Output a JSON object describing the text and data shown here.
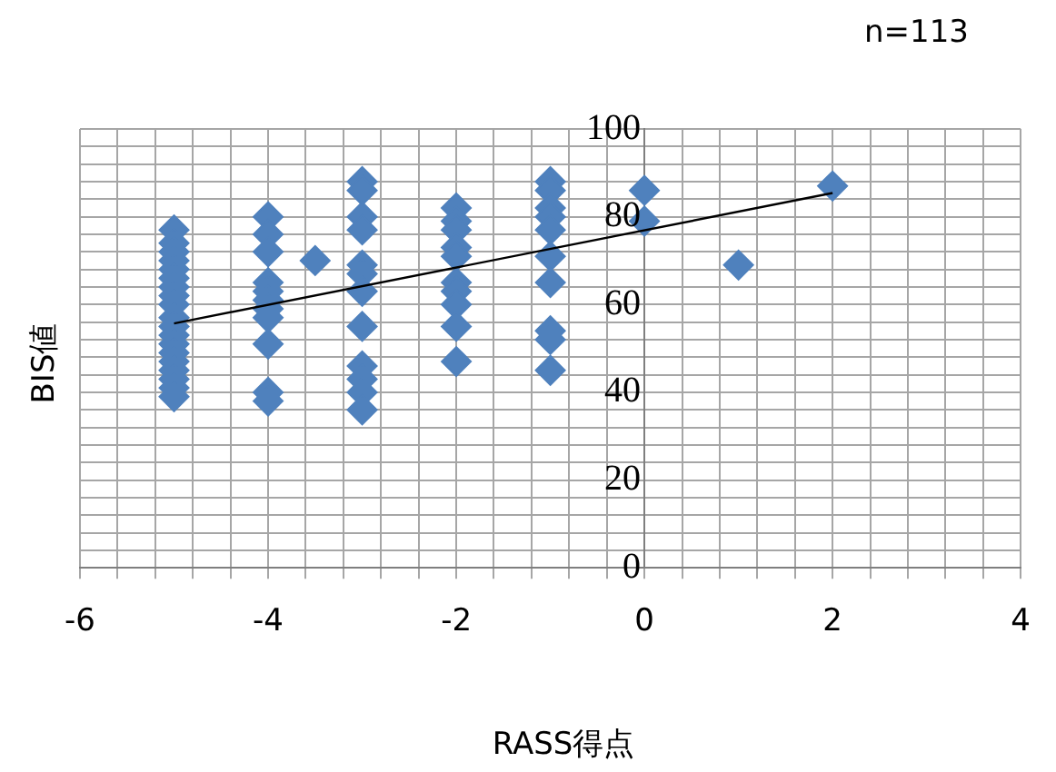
{
  "chart_data": {
    "type": "scatter",
    "xlabel": "RASS得点",
    "ylabel": "BIS値",
    "annotations": [
      "n=113"
    ],
    "xlim": [
      -6,
      4
    ],
    "ylim": [
      0,
      100
    ],
    "xticks": [
      -6,
      {
        "value": -5.6,
        "label": null
      },
      {
        "value": -5.2,
        "label": null
      },
      {
        "value": -4.8,
        "label": null
      },
      {
        "value": -4.4,
        "label": null
      },
      -4,
      {
        "value": -3.6,
        "label": null
      },
      {
        "value": -3.2,
        "label": null
      },
      {
        "value": -2.8,
        "label": null
      },
      {
        "value": -2.4,
        "label": null
      },
      -2,
      {
        "value": -1.6,
        "label": null
      },
      {
        "value": -1.2,
        "label": null
      },
      {
        "value": -0.8,
        "label": null
      },
      {
        "value": -0.4,
        "label": null
      },
      0,
      {
        "value": 0.4,
        "label": null
      },
      {
        "value": 0.8,
        "label": null
      },
      {
        "value": 1.2,
        "label": null
      },
      {
        "value": 1.6,
        "label": null
      },
      2,
      {
        "value": 2.4,
        "label": null
      },
      {
        "value": 2.8,
        "label": null
      },
      {
        "value": 3.2,
        "label": null
      },
      {
        "value": 3.6,
        "label": null
      },
      4
    ],
    "yticks": [
      0,
      {
        "value": 4,
        "label": null
      },
      {
        "value": 8,
        "label": null
      },
      {
        "value": 12,
        "label": null
      },
      {
        "value": 16,
        "label": null
      },
      20,
      {
        "value": 24,
        "label": null
      },
      {
        "value": 28,
        "label": null
      },
      {
        "value": 32,
        "label": null
      },
      {
        "value": 36,
        "label": null
      },
      40,
      {
        "value": 44,
        "label": null
      },
      {
        "value": 48,
        "label": null
      },
      {
        "value": 52,
        "label": null
      },
      {
        "value": 56,
        "label": null
      },
      60,
      {
        "value": 64,
        "label": null
      },
      {
        "value": 68,
        "label": null
      },
      {
        "value": 72,
        "label": null
      },
      {
        "value": 76,
        "label": null
      },
      80,
      {
        "value": 84,
        "label": null
      },
      {
        "value": 88,
        "label": null
      },
      {
        "value": 92,
        "label": null
      },
      {
        "value": 96,
        "label": null
      },
      100
    ],
    "grid": true,
    "marker": "diamond",
    "series": [
      {
        "color": "#4f81bd",
        "x": [
          -5,
          -5,
          -5,
          -5,
          -5,
          -5,
          -5,
          -5,
          -5,
          -5,
          -5,
          -5,
          -5,
          -5,
          -5,
          -5,
          -5,
          -5,
          -5,
          -4,
          -4,
          -4,
          -4,
          -4,
          -4,
          -4,
          -4,
          -4,
          -4,
          -4,
          -3.5,
          -3,
          -3,
          -3,
          -3,
          -3,
          -3,
          -3,
          -3,
          -3,
          -3,
          -3,
          -3,
          -2,
          -2,
          -2,
          -2,
          -2,
          -2,
          -2,
          -2,
          -2,
          -2,
          -1,
          -1,
          -1,
          -1,
          -1,
          -1,
          -1,
          -1,
          -1,
          -1,
          0,
          0,
          1,
          2
        ],
        "values": [
          77,
          74,
          72,
          70,
          68,
          66,
          64,
          62,
          60,
          57,
          55,
          53,
          51,
          49,
          47,
          45,
          43,
          41,
          39,
          80,
          76,
          72,
          65,
          63,
          61,
          59,
          57,
          51,
          40,
          38,
          70,
          88,
          86,
          80,
          77,
          69,
          67,
          63,
          55,
          46,
          43,
          40,
          36,
          82,
          79,
          77,
          73,
          71,
          65,
          63,
          60,
          55,
          47,
          88,
          86,
          82,
          80,
          77,
          71,
          65,
          54,
          52,
          45,
          86,
          79,
          69,
          87
        ]
      },
      {
        "type": "line",
        "color": "#000000",
        "marker": "none",
        "x": [
          -5,
          2
        ],
        "values": [
          55.7,
          85.4
        ]
      }
    ]
  }
}
